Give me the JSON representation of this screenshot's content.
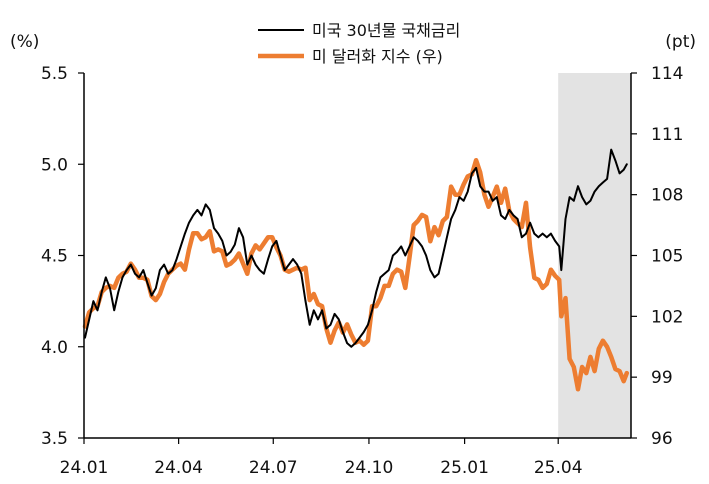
{
  "chart_data": {
    "type": "line",
    "left_unit": "(%)",
    "right_unit": "(pt)",
    "x_ticks": [
      "24.01",
      "24.04",
      "24.07",
      "24.10",
      "25.01",
      "25.04"
    ],
    "x_range": [
      "2024-01-01",
      "2025-06-10"
    ],
    "y_left_ticks": [
      "3.5",
      "4.0",
      "4.5",
      "5.0",
      "5.5"
    ],
    "y_left_range": [
      3.5,
      5.5
    ],
    "y_right_ticks": [
      "96",
      "99",
      "102",
      "105",
      "108",
      "111",
      "114"
    ],
    "y_right_range": [
      96,
      114
    ],
    "shaded_region": {
      "start": "2025-04-01",
      "end": "2025-06-10",
      "color": "#e3e3e3"
    },
    "grid": false,
    "legend_position": "top-center",
    "series": [
      {
        "name": "미국 30년물 국채금리",
        "axis": "left",
        "color": "#000000",
        "points": [
          [
            "2024-01-02",
            4.05
          ],
          [
            "2024-01-06",
            4.15
          ],
          [
            "2024-01-10",
            4.25
          ],
          [
            "2024-01-14",
            4.2
          ],
          [
            "2024-01-18",
            4.3
          ],
          [
            "2024-01-22",
            4.38
          ],
          [
            "2024-01-26",
            4.32
          ],
          [
            "2024-01-30",
            4.2
          ],
          [
            "2024-02-03",
            4.3
          ],
          [
            "2024-02-07",
            4.38
          ],
          [
            "2024-02-11",
            4.42
          ],
          [
            "2024-02-15",
            4.45
          ],
          [
            "2024-02-19",
            4.4
          ],
          [
            "2024-02-23",
            4.38
          ],
          [
            "2024-02-27",
            4.42
          ],
          [
            "2024-03-02",
            4.35
          ],
          [
            "2024-03-06",
            4.28
          ],
          [
            "2024-03-10",
            4.32
          ],
          [
            "2024-03-14",
            4.42
          ],
          [
            "2024-03-18",
            4.45
          ],
          [
            "2024-03-22",
            4.4
          ],
          [
            "2024-03-26",
            4.42
          ],
          [
            "2024-03-30",
            4.48
          ],
          [
            "2024-04-03",
            4.55
          ],
          [
            "2024-04-07",
            4.62
          ],
          [
            "2024-04-11",
            4.68
          ],
          [
            "2024-04-15",
            4.72
          ],
          [
            "2024-04-19",
            4.75
          ],
          [
            "2024-04-23",
            4.72
          ],
          [
            "2024-04-27",
            4.78
          ],
          [
            "2024-05-01",
            4.75
          ],
          [
            "2024-05-05",
            4.65
          ],
          [
            "2024-05-09",
            4.62
          ],
          [
            "2024-05-13",
            4.58
          ],
          [
            "2024-05-17",
            4.5
          ],
          [
            "2024-05-21",
            4.52
          ],
          [
            "2024-05-25",
            4.56
          ],
          [
            "2024-05-29",
            4.65
          ],
          [
            "2024-06-02",
            4.6
          ],
          [
            "2024-06-06",
            4.45
          ],
          [
            "2024-06-10",
            4.5
          ],
          [
            "2024-06-14",
            4.45
          ],
          [
            "2024-06-18",
            4.42
          ],
          [
            "2024-06-22",
            4.4
          ],
          [
            "2024-06-26",
            4.48
          ],
          [
            "2024-06-30",
            4.55
          ],
          [
            "2024-07-04",
            4.58
          ],
          [
            "2024-07-08",
            4.5
          ],
          [
            "2024-07-12",
            4.42
          ],
          [
            "2024-07-16",
            4.45
          ],
          [
            "2024-07-20",
            4.48
          ],
          [
            "2024-07-24",
            4.45
          ],
          [
            "2024-07-28",
            4.4
          ],
          [
            "2024-08-01",
            4.25
          ],
          [
            "2024-08-05",
            4.12
          ],
          [
            "2024-08-09",
            4.2
          ],
          [
            "2024-08-13",
            4.15
          ],
          [
            "2024-08-17",
            4.2
          ],
          [
            "2024-08-21",
            4.1
          ],
          [
            "2024-08-25",
            4.12
          ],
          [
            "2024-08-29",
            4.18
          ],
          [
            "2024-09-02",
            4.15
          ],
          [
            "2024-09-06",
            4.08
          ],
          [
            "2024-09-10",
            4.02
          ],
          [
            "2024-09-14",
            4.0
          ],
          [
            "2024-09-18",
            4.02
          ],
          [
            "2024-09-22",
            4.05
          ],
          [
            "2024-09-26",
            4.08
          ],
          [
            "2024-09-30",
            4.12
          ],
          [
            "2024-10-04",
            4.2
          ],
          [
            "2024-10-08",
            4.3
          ],
          [
            "2024-10-12",
            4.38
          ],
          [
            "2024-10-16",
            4.4
          ],
          [
            "2024-10-20",
            4.42
          ],
          [
            "2024-10-24",
            4.5
          ],
          [
            "2024-10-28",
            4.52
          ],
          [
            "2024-11-01",
            4.55
          ],
          [
            "2024-11-05",
            4.5
          ],
          [
            "2024-11-09",
            4.55
          ],
          [
            "2024-11-13",
            4.6
          ],
          [
            "2024-11-17",
            4.58
          ],
          [
            "2024-11-21",
            4.55
          ],
          [
            "2024-11-25",
            4.5
          ],
          [
            "2024-11-29",
            4.42
          ],
          [
            "2024-12-03",
            4.38
          ],
          [
            "2024-12-07",
            4.4
          ],
          [
            "2024-12-11",
            4.5
          ],
          [
            "2024-12-15",
            4.6
          ],
          [
            "2024-12-19",
            4.7
          ],
          [
            "2024-12-23",
            4.75
          ],
          [
            "2024-12-27",
            4.82
          ],
          [
            "2024-12-31",
            4.8
          ],
          [
            "2025-01-04",
            4.85
          ],
          [
            "2025-01-08",
            4.95
          ],
          [
            "2025-01-12",
            4.98
          ],
          [
            "2025-01-16",
            4.88
          ],
          [
            "2025-01-20",
            4.85
          ],
          [
            "2025-01-24",
            4.85
          ],
          [
            "2025-01-28",
            4.8
          ],
          [
            "2025-02-01",
            4.82
          ],
          [
            "2025-02-05",
            4.72
          ],
          [
            "2025-02-09",
            4.7
          ],
          [
            "2025-02-13",
            4.75
          ],
          [
            "2025-02-17",
            4.72
          ],
          [
            "2025-02-21",
            4.7
          ],
          [
            "2025-02-25",
            4.6
          ],
          [
            "2025-03-01",
            4.62
          ],
          [
            "2025-03-05",
            4.68
          ],
          [
            "2025-03-09",
            4.62
          ],
          [
            "2025-03-13",
            4.6
          ],
          [
            "2025-03-17",
            4.62
          ],
          [
            "2025-03-21",
            4.6
          ],
          [
            "2025-03-25",
            4.62
          ],
          [
            "2025-03-29",
            4.58
          ],
          [
            "2025-04-02",
            4.55
          ],
          [
            "2025-04-04",
            4.42
          ],
          [
            "2025-04-08",
            4.7
          ],
          [
            "2025-04-12",
            4.82
          ],
          [
            "2025-04-16",
            4.8
          ],
          [
            "2025-04-20",
            4.88
          ],
          [
            "2025-04-24",
            4.82
          ],
          [
            "2025-04-28",
            4.78
          ],
          [
            "2025-05-02",
            4.8
          ],
          [
            "2025-05-06",
            4.85
          ],
          [
            "2025-05-10",
            4.88
          ],
          [
            "2025-05-14",
            4.9
          ],
          [
            "2025-05-18",
            4.92
          ],
          [
            "2025-05-22",
            5.08
          ],
          [
            "2025-05-26",
            5.02
          ],
          [
            "2025-05-30",
            4.95
          ],
          [
            "2025-06-03",
            4.97
          ],
          [
            "2025-06-06",
            5.0
          ]
        ]
      },
      {
        "name": "미 달러화 지수 (우)",
        "axis": "right",
        "color": "#ed7d31",
        "points": [
          [
            "2024-01-02",
            101.5
          ],
          [
            "2024-01-06",
            102.2
          ],
          [
            "2024-01-10",
            102.4
          ],
          [
            "2024-01-14",
            102.5
          ],
          [
            "2024-01-18",
            103.2
          ],
          [
            "2024-01-22",
            103.4
          ],
          [
            "2024-01-26",
            103.5
          ],
          [
            "2024-01-30",
            103.4
          ],
          [
            "2024-02-03",
            103.9
          ],
          [
            "2024-02-07",
            104.1
          ],
          [
            "2024-02-11",
            104.2
          ],
          [
            "2024-02-15",
            104.6
          ],
          [
            "2024-02-19",
            104.3
          ],
          [
            "2024-02-23",
            103.9
          ],
          [
            "2024-02-27",
            103.9
          ],
          [
            "2024-03-02",
            103.8
          ],
          [
            "2024-03-06",
            103.0
          ],
          [
            "2024-03-10",
            102.8
          ],
          [
            "2024-03-14",
            103.1
          ],
          [
            "2024-03-18",
            103.7
          ],
          [
            "2024-03-22",
            104.1
          ],
          [
            "2024-03-26",
            104.3
          ],
          [
            "2024-03-30",
            104.5
          ],
          [
            "2024-04-03",
            104.6
          ],
          [
            "2024-04-07",
            104.3
          ],
          [
            "2024-04-11",
            105.3
          ],
          [
            "2024-04-15",
            106.1
          ],
          [
            "2024-04-19",
            106.1
          ],
          [
            "2024-04-23",
            105.8
          ],
          [
            "2024-04-27",
            105.9
          ],
          [
            "2024-05-01",
            106.2
          ],
          [
            "2024-05-05",
            105.2
          ],
          [
            "2024-05-09",
            105.3
          ],
          [
            "2024-05-13",
            105.2
          ],
          [
            "2024-05-17",
            104.5
          ],
          [
            "2024-05-21",
            104.6
          ],
          [
            "2024-05-25",
            104.8
          ],
          [
            "2024-05-29",
            105.1
          ],
          [
            "2024-06-02",
            104.6
          ],
          [
            "2024-06-06",
            104.1
          ],
          [
            "2024-06-10",
            105.1
          ],
          [
            "2024-06-14",
            105.5
          ],
          [
            "2024-06-18",
            105.3
          ],
          [
            "2024-06-22",
            105.6
          ],
          [
            "2024-06-26",
            105.9
          ],
          [
            "2024-06-30",
            105.9
          ],
          [
            "2024-07-04",
            105.4
          ],
          [
            "2024-07-08",
            105.0
          ],
          [
            "2024-07-12",
            104.3
          ],
          [
            "2024-07-16",
            104.2
          ],
          [
            "2024-07-20",
            104.3
          ],
          [
            "2024-07-24",
            104.4
          ],
          [
            "2024-07-28",
            104.3
          ],
          [
            "2024-08-01",
            104.4
          ],
          [
            "2024-08-05",
            102.8
          ],
          [
            "2024-08-09",
            103.1
          ],
          [
            "2024-08-13",
            102.6
          ],
          [
            "2024-08-17",
            102.5
          ],
          [
            "2024-08-21",
            101.4
          ],
          [
            "2024-08-25",
            100.7
          ],
          [
            "2024-08-29",
            101.3
          ],
          [
            "2024-09-02",
            101.7
          ],
          [
            "2024-09-06",
            101.2
          ],
          [
            "2024-09-10",
            101.6
          ],
          [
            "2024-09-14",
            101.1
          ],
          [
            "2024-09-18",
            100.7
          ],
          [
            "2024-09-22",
            100.8
          ],
          [
            "2024-09-26",
            100.6
          ],
          [
            "2024-09-30",
            100.8
          ],
          [
            "2024-10-04",
            102.5
          ],
          [
            "2024-10-08",
            102.5
          ],
          [
            "2024-10-12",
            102.9
          ],
          [
            "2024-10-16",
            103.5
          ],
          [
            "2024-10-20",
            103.5
          ],
          [
            "2024-10-24",
            104.1
          ],
          [
            "2024-10-28",
            104.3
          ],
          [
            "2024-11-01",
            104.2
          ],
          [
            "2024-11-05",
            103.4
          ],
          [
            "2024-11-09",
            104.9
          ],
          [
            "2024-11-13",
            106.5
          ],
          [
            "2024-11-17",
            106.7
          ],
          [
            "2024-11-21",
            107.0
          ],
          [
            "2024-11-25",
            106.9
          ],
          [
            "2024-11-29",
            105.7
          ],
          [
            "2024-12-03",
            106.4
          ],
          [
            "2024-12-07",
            106.0
          ],
          [
            "2024-12-11",
            106.7
          ],
          [
            "2024-12-15",
            106.9
          ],
          [
            "2024-12-19",
            108.4
          ],
          [
            "2024-12-23",
            108.0
          ],
          [
            "2024-12-27",
            108.0
          ],
          [
            "2024-12-31",
            108.5
          ],
          [
            "2025-01-04",
            108.9
          ],
          [
            "2025-01-08",
            109.0
          ],
          [
            "2025-01-12",
            109.7
          ],
          [
            "2025-01-16",
            109.1
          ],
          [
            "2025-01-20",
            108.0
          ],
          [
            "2025-01-24",
            107.4
          ],
          [
            "2025-01-28",
            107.9
          ],
          [
            "2025-02-01",
            108.4
          ],
          [
            "2025-02-05",
            107.6
          ],
          [
            "2025-02-09",
            108.3
          ],
          [
            "2025-02-13",
            107.2
          ],
          [
            "2025-02-17",
            106.8
          ],
          [
            "2025-02-21",
            106.6
          ],
          [
            "2025-02-25",
            106.4
          ],
          [
            "2025-03-01",
            107.6
          ],
          [
            "2025-03-05",
            105.4
          ],
          [
            "2025-03-09",
            103.9
          ],
          [
            "2025-03-13",
            103.8
          ],
          [
            "2025-03-17",
            103.4
          ],
          [
            "2025-03-21",
            103.6
          ],
          [
            "2025-03-25",
            104.3
          ],
          [
            "2025-03-29",
            104.0
          ],
          [
            "2025-04-02",
            103.8
          ],
          [
            "2025-04-04",
            102.0
          ],
          [
            "2025-04-08",
            102.9
          ],
          [
            "2025-04-12",
            99.9
          ],
          [
            "2025-04-16",
            99.5
          ],
          [
            "2025-04-20",
            98.4
          ],
          [
            "2025-04-24",
            99.5
          ],
          [
            "2025-04-28",
            99.2
          ],
          [
            "2025-05-02",
            100.0
          ],
          [
            "2025-05-06",
            99.3
          ],
          [
            "2025-05-10",
            100.4
          ],
          [
            "2025-05-14",
            100.8
          ],
          [
            "2025-05-18",
            100.5
          ],
          [
            "2025-05-22",
            100.0
          ],
          [
            "2025-05-26",
            99.4
          ],
          [
            "2025-05-30",
            99.3
          ],
          [
            "2025-06-03",
            98.8
          ],
          [
            "2025-06-06",
            99.2
          ]
        ]
      }
    ]
  }
}
